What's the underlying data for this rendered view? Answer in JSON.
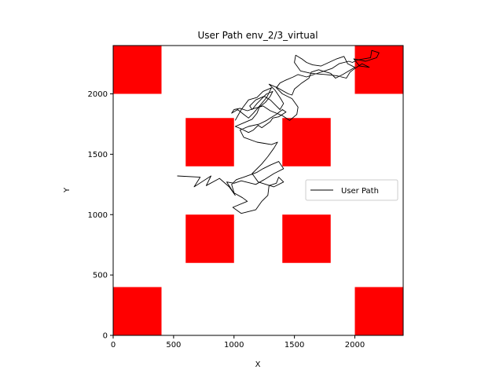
{
  "chart_data": {
    "type": "line",
    "title": "User Path env_2/3_virtual",
    "xlabel": "X",
    "ylabel": "Y",
    "xlim": [
      0,
      2400
    ],
    "ylim": [
      0,
      2400
    ],
    "xticks": [
      0,
      500,
      1000,
      1500,
      2000
    ],
    "yticks": [
      0,
      500,
      1000,
      1500,
      2000
    ],
    "grid": false,
    "legend": {
      "entries": [
        "User Path"
      ],
      "placement": "center-right"
    },
    "obstacle_color": "#ff0000",
    "obstacles": [
      {
        "x0": 0,
        "y0": 2000,
        "x1": 400,
        "y1": 2400
      },
      {
        "x0": 2000,
        "y0": 2000,
        "x1": 2400,
        "y1": 2400
      },
      {
        "x0": 600,
        "y0": 1400,
        "x1": 1000,
        "y1": 1800
      },
      {
        "x0": 1400,
        "y0": 1400,
        "x1": 1800,
        "y1": 1800
      },
      {
        "x0": 600,
        "y0": 600,
        "x1": 1000,
        "y1": 1000
      },
      {
        "x0": 1400,
        "y0": 600,
        "x1": 1800,
        "y1": 1000
      },
      {
        "x0": 0,
        "y0": 0,
        "x1": 400,
        "y1": 400
      },
      {
        "x0": 2000,
        "y0": 0,
        "x1": 2400,
        "y1": 400
      }
    ],
    "series": [
      {
        "name": "User Path",
        "color": "#000000",
        "x": [
          530,
          720,
          670,
          810,
          770,
          880,
          960,
          1010,
          940,
          1000,
          1060,
          1180,
          1250,
          1330,
          1410,
          1370,
          1300,
          1240,
          1190,
          1080,
          1020,
          980,
          1000,
          1070,
          1110,
          990,
          1060,
          1180,
          1230,
          1280,
          1290,
          1350,
          1370,
          1410,
          1330,
          1200,
          1150,
          1230,
          1280,
          1330,
          1360,
          1310,
          1250,
          1190,
          1080,
          1050,
          1120,
          1210,
          1270,
          1300,
          1350,
          1400,
          1430,
          1370,
          1320,
          1300,
          1230,
          1200,
          1160,
          1120,
          1060,
          1010,
          1080,
          1150,
          1190,
          1210,
          1260,
          1300,
          1320,
          1270,
          1230,
          1190,
          1150,
          1130,
          1180,
          1250,
          1300,
          1350,
          1380,
          1410,
          1380,
          1340,
          1290,
          1360,
          1450,
          1480,
          1500,
          1560,
          1620,
          1640,
          1700,
          1800,
          1840,
          1900,
          2000,
          1940,
          1910,
          1850,
          1720,
          1650,
          1600,
          1560,
          1510,
          1500,
          1550,
          1640,
          1760,
          1850,
          1930,
          1960,
          2000,
          2060,
          2120,
          2040,
          1990,
          2090,
          2180,
          2200,
          2140,
          2130,
          2020,
          1980,
          1950,
          1870,
          1810,
          1600,
          1530,
          1490,
          1420,
          1380,
          1350,
          1400,
          1480,
          1530,
          1520,
          1460,
          1400,
          1300,
          1240,
          1170,
          1110,
          1050,
          1000,
          980,
          1030,
          1080,
          1120,
          1160,
          1220,
          1270,
          1310,
          1240,
          1190,
          1120,
          1060,
          1010
        ],
        "y": [
          1320,
          1310,
          1230,
          1320,
          1240,
          1300,
          1230,
          1160,
          1270,
          1260,
          1280,
          1250,
          1290,
          1340,
          1380,
          1440,
          1410,
          1380,
          1350,
          1310,
          1290,
          1250,
          1180,
          1140,
          1110,
          1060,
          1010,
          1040,
          1110,
          1160,
          1240,
          1260,
          1310,
          1270,
          1230,
          1270,
          1340,
          1420,
          1480,
          1550,
          1600,
          1580,
          1590,
          1600,
          1640,
          1700,
          1730,
          1750,
          1780,
          1800,
          1830,
          1870,
          1850,
          1810,
          1800,
          1770,
          1720,
          1740,
          1700,
          1680,
          1710,
          1730,
          1760,
          1790,
          1840,
          1890,
          1930,
          1980,
          2020,
          2000,
          1960,
          1920,
          1870,
          1900,
          1950,
          1980,
          1950,
          1900,
          1870,
          1920,
          1970,
          2030,
          2080,
          2050,
          2000,
          1990,
          2040,
          2090,
          2130,
          2180,
          2200,
          2170,
          2130,
          2160,
          2220,
          2250,
          2310,
          2290,
          2230,
          2240,
          2260,
          2290,
          2320,
          2260,
          2190,
          2170,
          2160,
          2150,
          2130,
          2180,
          2210,
          2250,
          2220,
          2230,
          2290,
          2270,
          2300,
          2340,
          2360,
          2300,
          2280,
          2260,
          2270,
          2250,
          2210,
          2140,
          2160,
          2140,
          2110,
          2090,
          2050,
          2000,
          1960,
          1890,
          1830,
          1780,
          1820,
          1860,
          1900,
          1880,
          1860,
          1880,
          1870,
          1840,
          1870,
          1830,
          1800,
          1840,
          1910,
          1970,
          2050,
          2020,
          1970,
          1950,
          1870,
          1780
        ]
      }
    ]
  }
}
